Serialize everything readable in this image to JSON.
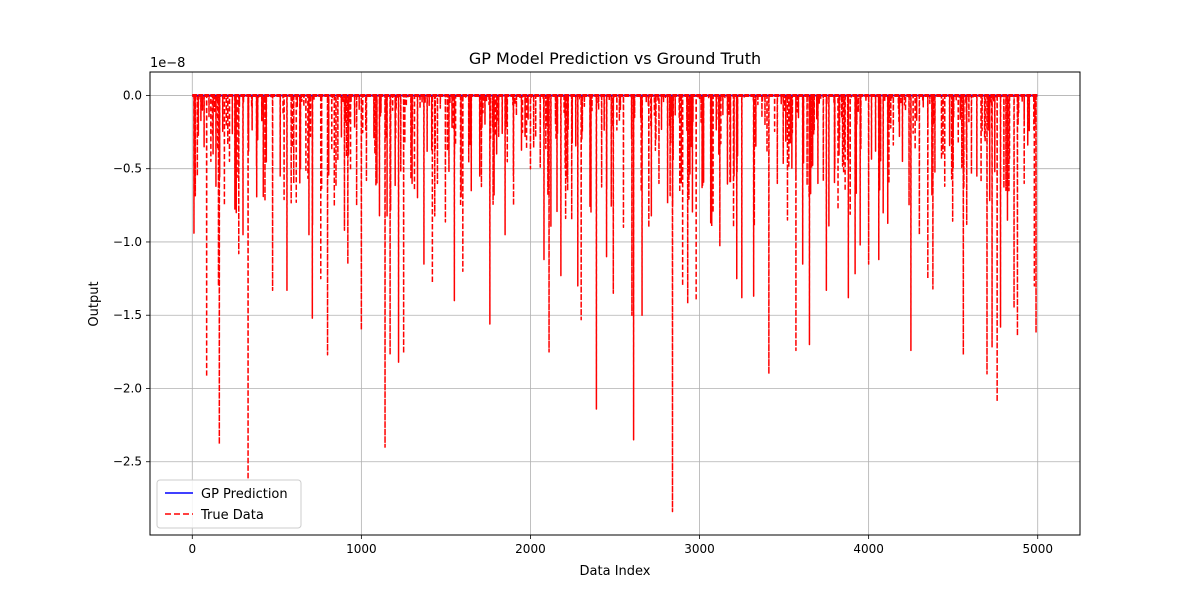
{
  "chart_data": {
    "type": "line",
    "title": "GP Model Prediction vs Ground Truth",
    "xlabel": "Data Index",
    "ylabel": "Output",
    "offset_label": "1e−8",
    "xlim": [
      -250,
      5250
    ],
    "ylim": [
      -3.0,
      0.16
    ],
    "y_scale_factor": 1e-08,
    "xticks": [
      0,
      1000,
      2000,
      3000,
      4000,
      5000
    ],
    "xtick_labels": [
      "0",
      "1000",
      "2000",
      "3000",
      "4000",
      "5000"
    ],
    "yticks": [
      0.0,
      -0.5,
      -1.0,
      -1.5,
      -2.0,
      -2.5
    ],
    "ytick_labels": [
      "0.0",
      "−0.5",
      "−1.0",
      "−1.5",
      "−2.0",
      "−2.5"
    ],
    "grid": true,
    "legend": "lower-left",
    "n_points": 5000,
    "baseline": 0.0,
    "spikes": [
      {
        "x": 10,
        "y": -0.94
      },
      {
        "x": 30,
        "y": -0.55
      },
      {
        "x": 70,
        "y": -0.35
      },
      {
        "x": 85,
        "y": -1.92
      },
      {
        "x": 110,
        "y": -0.45
      },
      {
        "x": 140,
        "y": -0.62
      },
      {
        "x": 155,
        "y": -1.3
      },
      {
        "x": 160,
        "y": -2.38
      },
      {
        "x": 190,
        "y": -0.75
      },
      {
        "x": 220,
        "y": -0.45
      },
      {
        "x": 260,
        "y": -0.8
      },
      {
        "x": 275,
        "y": -1.08
      },
      {
        "x": 300,
        "y": -0.95
      },
      {
        "x": 330,
        "y": -2.62
      },
      {
        "x": 380,
        "y": -0.48
      },
      {
        "x": 430,
        "y": -0.72
      },
      {
        "x": 475,
        "y": -1.33
      },
      {
        "x": 520,
        "y": -0.55
      },
      {
        "x": 560,
        "y": -1.33
      },
      {
        "x": 600,
        "y": -0.6
      },
      {
        "x": 640,
        "y": -0.5
      },
      {
        "x": 690,
        "y": -0.95
      },
      {
        "x": 710,
        "y": -1.52
      },
      {
        "x": 760,
        "y": -1.25
      },
      {
        "x": 800,
        "y": -1.77
      },
      {
        "x": 850,
        "y": -0.62
      },
      {
        "x": 900,
        "y": -0.92
      },
      {
        "x": 920,
        "y": -1.15
      },
      {
        "x": 1000,
        "y": -1.6
      },
      {
        "x": 1030,
        "y": -0.58
      },
      {
        "x": 1080,
        "y": -0.4
      },
      {
        "x": 1140,
        "y": -2.4
      },
      {
        "x": 1170,
        "y": -1.77
      },
      {
        "x": 1220,
        "y": -1.82
      },
      {
        "x": 1250,
        "y": -1.76
      },
      {
        "x": 1300,
        "y": -0.6
      },
      {
        "x": 1370,
        "y": -1.15
      },
      {
        "x": 1420,
        "y": -1.28
      },
      {
        "x": 1450,
        "y": -0.6
      },
      {
        "x": 1550,
        "y": -1.4
      },
      {
        "x": 1600,
        "y": -1.2
      },
      {
        "x": 1650,
        "y": -0.65
      },
      {
        "x": 1700,
        "y": -0.55
      },
      {
        "x": 1760,
        "y": -1.56
      },
      {
        "x": 1850,
        "y": -0.95
      },
      {
        "x": 1900,
        "y": -0.75
      },
      {
        "x": 2000,
        "y": -0.5
      },
      {
        "x": 2080,
        "y": -1.12
      },
      {
        "x": 2110,
        "y": -1.75
      },
      {
        "x": 2180,
        "y": -1.23
      },
      {
        "x": 2220,
        "y": -0.65
      },
      {
        "x": 2280,
        "y": -1.3
      },
      {
        "x": 2300,
        "y": -1.53
      },
      {
        "x": 2390,
        "y": -2.14
      },
      {
        "x": 2450,
        "y": -1.1
      },
      {
        "x": 2490,
        "y": -1.35
      },
      {
        "x": 2550,
        "y": -0.9
      },
      {
        "x": 2600,
        "y": -1.5
      },
      {
        "x": 2610,
        "y": -2.35
      },
      {
        "x": 2660,
        "y": -1.5
      },
      {
        "x": 2700,
        "y": -0.9
      },
      {
        "x": 2760,
        "y": -0.6
      },
      {
        "x": 2840,
        "y": -2.84
      },
      {
        "x": 2900,
        "y": -1.3
      },
      {
        "x": 2930,
        "y": -1.42
      },
      {
        "x": 2980,
        "y": -1.4
      },
      {
        "x": 3080,
        "y": -0.8
      },
      {
        "x": 3120,
        "y": -1.03
      },
      {
        "x": 3180,
        "y": -0.6
      },
      {
        "x": 3220,
        "y": -1.25
      },
      {
        "x": 3250,
        "y": -1.38
      },
      {
        "x": 3320,
        "y": -1.37
      },
      {
        "x": 3410,
        "y": -1.9
      },
      {
        "x": 3460,
        "y": -0.6
      },
      {
        "x": 3520,
        "y": -0.85
      },
      {
        "x": 3570,
        "y": -1.74
      },
      {
        "x": 3610,
        "y": -1.15
      },
      {
        "x": 3650,
        "y": -1.7
      },
      {
        "x": 3700,
        "y": -0.6
      },
      {
        "x": 3750,
        "y": -1.33
      },
      {
        "x": 3800,
        "y": -0.5
      },
      {
        "x": 3880,
        "y": -1.38
      },
      {
        "x": 3920,
        "y": -1.22
      },
      {
        "x": 3950,
        "y": -1.02
      },
      {
        "x": 4000,
        "y": -1.15
      },
      {
        "x": 4060,
        "y": -1.12
      },
      {
        "x": 4120,
        "y": -0.6
      },
      {
        "x": 4200,
        "y": -0.45
      },
      {
        "x": 4250,
        "y": -1.74
      },
      {
        "x": 4300,
        "y": -0.95
      },
      {
        "x": 4350,
        "y": -1.25
      },
      {
        "x": 4380,
        "y": -1.32
      },
      {
        "x": 4450,
        "y": -0.62
      },
      {
        "x": 4500,
        "y": -0.5
      },
      {
        "x": 4560,
        "y": -1.77
      },
      {
        "x": 4580,
        "y": -0.88
      },
      {
        "x": 4640,
        "y": -0.55
      },
      {
        "x": 4700,
        "y": -1.9
      },
      {
        "x": 4730,
        "y": -1.72
      },
      {
        "x": 4760,
        "y": -2.09
      },
      {
        "x": 4780,
        "y": -1.58
      },
      {
        "x": 4830,
        "y": -0.65
      },
      {
        "x": 4860,
        "y": -1.45
      },
      {
        "x": 4880,
        "y": -1.64
      },
      {
        "x": 4920,
        "y": -0.6
      },
      {
        "x": 4980,
        "y": -1.3
      },
      {
        "x": 4990,
        "y": -1.62
      }
    ],
    "series": [
      {
        "name": "GP Prediction",
        "color": "#0000ff",
        "style": "solid"
      },
      {
        "name": "True Data",
        "color": "#ff0000",
        "style": "dashed"
      }
    ]
  }
}
